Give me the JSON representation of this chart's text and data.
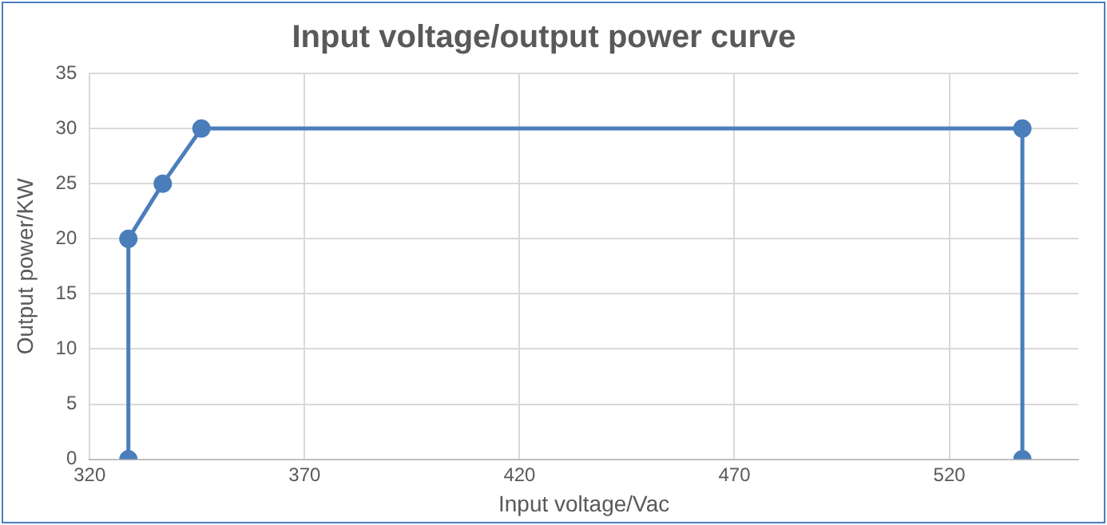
{
  "chart_data": {
    "type": "line",
    "title": "Input voltage/output power curve",
    "xlabel": "Input voltage/Vac",
    "ylabel": "Output power/KW",
    "x": [
      329,
      329,
      337,
      346,
      537,
      537
    ],
    "values": [
      0,
      20,
      25,
      30,
      30,
      0
    ],
    "color": "#4a7ebb",
    "xlim": [
      320,
      550
    ],
    "xticks": [
      320,
      370,
      420,
      470,
      520
    ],
    "ylim": [
      0,
      35
    ],
    "yticks": [
      0,
      5,
      10,
      15,
      20,
      25,
      30,
      35
    ],
    "grid": true,
    "marker": "circle",
    "line_style": "solid"
  }
}
